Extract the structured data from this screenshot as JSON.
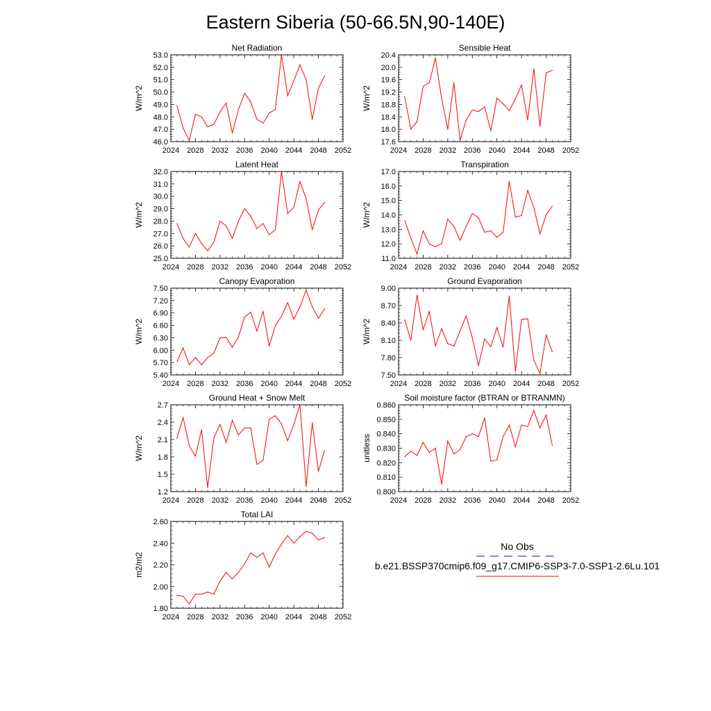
{
  "title": "Eastern Siberia (50-66.5N,90-140E)",
  "legend": {
    "obs_label": "No Obs",
    "model_label": "b.e21.BSSP370cmip6.f09_g17.CMIP6-SSP3-7.0-SSP1-2.6Lu.101",
    "obs_color": "#3b3bd0",
    "model_color": "#ff0000"
  },
  "chart_data": [
    {
      "type": "line",
      "title": "Net Radiation",
      "ylabel": "W/m^2",
      "xlim": [
        2024,
        2052
      ],
      "xticks": [
        2024,
        2028,
        2032,
        2036,
        2040,
        2044,
        2048,
        2052
      ],
      "ylim": [
        46.0,
        53.0
      ],
      "yticks": [
        "46.0",
        "47.0",
        "48.0",
        "49.0",
        "50.0",
        "51.0",
        "52.0",
        "53.0"
      ],
      "x": [
        2025,
        2026,
        2027,
        2028,
        2029,
        2030,
        2031,
        2032,
        2033,
        2034,
        2035,
        2036,
        2037,
        2038,
        2039,
        2040,
        2041,
        2042,
        2043,
        2044,
        2045,
        2046,
        2047,
        2048,
        2049
      ],
      "series": [
        {
          "values": [
            48.9,
            47.1,
            46.1,
            48.2,
            48.0,
            47.2,
            47.4,
            48.4,
            49.1,
            46.7,
            48.6,
            49.9,
            49.2,
            47.8,
            47.5,
            48.3,
            48.6,
            53.0,
            49.7,
            50.9,
            52.2,
            51.0,
            47.8,
            50.3,
            51.3
          ],
          "color": "#ff0000"
        }
      ]
    },
    {
      "type": "line",
      "title": "Sensible Heat",
      "ylabel": "W/m^2",
      "xlim": [
        2024,
        2052
      ],
      "xticks": [
        2024,
        2028,
        2032,
        2036,
        2040,
        2044,
        2048,
        2052
      ],
      "ylim": [
        17.6,
        20.4
      ],
      "yticks": [
        "17.6",
        "18.0",
        "18.4",
        "18.8",
        "19.2",
        "19.6",
        "20.0",
        "20.4"
      ],
      "x": [
        2025,
        2026,
        2027,
        2028,
        2029,
        2030,
        2031,
        2032,
        2033,
        2034,
        2035,
        2036,
        2037,
        2038,
        2039,
        2040,
        2041,
        2042,
        2043,
        2044,
        2045,
        2046,
        2047,
        2048,
        2049
      ],
      "series": [
        {
          "values": [
            19.05,
            18.0,
            18.25,
            19.38,
            19.5,
            20.3,
            19.0,
            18.0,
            19.5,
            17.65,
            18.3,
            18.62,
            18.57,
            18.72,
            17.95,
            19.0,
            18.82,
            18.6,
            18.98,
            19.43,
            18.3,
            19.95,
            18.1,
            19.82,
            19.9
          ],
          "color": "#ff0000"
        }
      ]
    },
    {
      "type": "line",
      "title": "Latent Heat",
      "ylabel": "W/m^2",
      "xlim": [
        2024,
        2052
      ],
      "xticks": [
        2024,
        2028,
        2032,
        2036,
        2040,
        2044,
        2048,
        2052
      ],
      "ylim": [
        25.0,
        32.0
      ],
      "yticks": [
        "25.0",
        "26.0",
        "27.0",
        "28.0",
        "29.0",
        "30.0",
        "31.0",
        "32.0"
      ],
      "x": [
        2025,
        2026,
        2027,
        2028,
        2029,
        2030,
        2031,
        2032,
        2033,
        2034,
        2035,
        2036,
        2037,
        2038,
        2039,
        2040,
        2041,
        2042,
        2043,
        2044,
        2045,
        2046,
        2047,
        2048,
        2049
      ],
      "series": [
        {
          "values": [
            27.8,
            26.6,
            25.9,
            27.0,
            26.2,
            25.6,
            26.3,
            28.0,
            27.6,
            26.6,
            28.0,
            29.0,
            28.4,
            27.4,
            27.8,
            26.9,
            27.3,
            32.0,
            28.6,
            29.1,
            31.2,
            29.8,
            27.3,
            28.9,
            29.5
          ],
          "color": "#ff0000"
        }
      ]
    },
    {
      "type": "line",
      "title": "Transpiration",
      "ylabel": "W/m^2",
      "xlim": [
        2024,
        2052
      ],
      "xticks": [
        2024,
        2028,
        2032,
        2036,
        2040,
        2044,
        2048,
        2052
      ],
      "ylim": [
        11.0,
        17.0
      ],
      "yticks": [
        "11.0",
        "12.0",
        "13.0",
        "14.0",
        "15.0",
        "16.0",
        "17.0"
      ],
      "x": [
        2025,
        2026,
        2027,
        2028,
        2029,
        2030,
        2031,
        2032,
        2033,
        2034,
        2035,
        2036,
        2037,
        2038,
        2039,
        2040,
        2041,
        2042,
        2043,
        2044,
        2045,
        2046,
        2047,
        2048,
        2049
      ],
      "series": [
        {
          "values": [
            13.6,
            12.4,
            11.3,
            12.9,
            12.0,
            11.8,
            12.0,
            13.7,
            13.2,
            12.25,
            13.2,
            14.1,
            13.8,
            12.8,
            12.9,
            12.45,
            12.8,
            16.3,
            13.85,
            13.95,
            15.7,
            14.5,
            12.7,
            14.0,
            14.6
          ],
          "color": "#ff0000"
        }
      ]
    },
    {
      "type": "line",
      "title": "Canopy Evaporation",
      "ylabel": "W/m^2",
      "xlim": [
        2024,
        2052
      ],
      "xticks": [
        2024,
        2028,
        2032,
        2036,
        2040,
        2044,
        2048,
        2052
      ],
      "ylim": [
        5.4,
        7.5
      ],
      "yticks": [
        "5.40",
        "5.70",
        "6.00",
        "6.30",
        "6.60",
        "6.90",
        "7.20",
        "7.50"
      ],
      "x": [
        2025,
        2026,
        2027,
        2028,
        2029,
        2030,
        2031,
        2032,
        2033,
        2034,
        2035,
        2036,
        2037,
        2038,
        2039,
        2040,
        2041,
        2042,
        2043,
        2044,
        2045,
        2046,
        2047,
        2048,
        2049
      ],
      "series": [
        {
          "values": [
            5.72,
            6.05,
            5.65,
            5.82,
            5.65,
            5.82,
            5.93,
            6.29,
            6.31,
            6.07,
            6.32,
            6.8,
            6.92,
            6.46,
            6.94,
            6.1,
            6.6,
            6.82,
            7.15,
            6.75,
            7.05,
            7.45,
            7.05,
            6.77,
            7.0
          ],
          "color": "#ff0000"
        }
      ]
    },
    {
      "type": "line",
      "title": "Ground Evaporation",
      "ylabel": "W/m^2",
      "xlim": [
        2024,
        2052
      ],
      "xticks": [
        2024,
        2028,
        2032,
        2036,
        2040,
        2044,
        2048,
        2052
      ],
      "ylim": [
        7.5,
        9.0
      ],
      "yticks": [
        "7.50",
        "7.80",
        "8.10",
        "8.40",
        "8.70",
        "9.00"
      ],
      "x": [
        2025,
        2026,
        2027,
        2028,
        2029,
        2030,
        2031,
        2032,
        2033,
        2034,
        2035,
        2036,
        2037,
        2038,
        2039,
        2040,
        2041,
        2042,
        2043,
        2044,
        2045,
        2046,
        2047,
        2048,
        2049
      ],
      "series": [
        {
          "values": [
            8.45,
            8.1,
            8.88,
            8.28,
            8.6,
            8.0,
            8.3,
            8.04,
            8.0,
            8.26,
            8.52,
            8.14,
            7.66,
            8.12,
            7.99,
            8.32,
            7.98,
            8.86,
            7.56,
            8.46,
            8.47,
            7.75,
            7.53,
            8.19,
            7.9
          ],
          "color": "#ff0000"
        }
      ]
    },
    {
      "type": "line",
      "title": "Ground Heat + Snow Melt",
      "ylabel": "W/m^2",
      "xlim": [
        2024,
        2052
      ],
      "xticks": [
        2024,
        2028,
        2032,
        2036,
        2040,
        2044,
        2048,
        2052
      ],
      "ylim": [
        1.2,
        2.7
      ],
      "yticks": [
        "1.2",
        "1.5",
        "1.8",
        "2.1",
        "2.4",
        "2.7"
      ],
      "x": [
        2025,
        2026,
        2027,
        2028,
        2029,
        2030,
        2031,
        2032,
        2033,
        2034,
        2035,
        2036,
        2037,
        2038,
        2039,
        2040,
        2041,
        2042,
        2043,
        2044,
        2045,
        2046,
        2047,
        2048,
        2049
      ],
      "series": [
        {
          "values": [
            2.12,
            2.48,
            1.99,
            1.81,
            2.27,
            1.27,
            2.13,
            2.36,
            2.05,
            2.43,
            2.18,
            2.3,
            2.3,
            1.67,
            1.74,
            2.45,
            2.51,
            2.37,
            2.08,
            2.36,
            2.7,
            1.29,
            2.39,
            1.55,
            1.91
          ],
          "color": "#ff0000"
        }
      ]
    },
    {
      "type": "line",
      "title": "Soil moisture factor (BTRAN or BTRANMN)",
      "ylabel": "unitless",
      "xlim": [
        2024,
        2052
      ],
      "xticks": [
        2024,
        2028,
        2032,
        2036,
        2040,
        2044,
        2048,
        2052
      ],
      "ylim": [
        0.8,
        0.86
      ],
      "yticks": [
        "0.800",
        "0.810",
        "0.820",
        "0.830",
        "0.840",
        "0.850",
        "0.860"
      ],
      "x": [
        2025,
        2026,
        2027,
        2028,
        2029,
        2030,
        2031,
        2032,
        2033,
        2034,
        2035,
        2036,
        2037,
        2038,
        2039,
        2040,
        2041,
        2042,
        2043,
        2044,
        2045,
        2046,
        2047,
        2048,
        2049
      ],
      "series": [
        {
          "values": [
            0.824,
            0.828,
            0.825,
            0.834,
            0.827,
            0.83,
            0.805,
            0.835,
            0.826,
            0.829,
            0.838,
            0.84,
            0.838,
            0.851,
            0.821,
            0.822,
            0.838,
            0.846,
            0.831,
            0.846,
            0.845,
            0.856,
            0.844,
            0.853,
            0.832
          ],
          "color": "#ff0000"
        }
      ]
    },
    {
      "type": "line",
      "title": "Total LAI",
      "ylabel": "m2/m2",
      "xlim": [
        2024,
        2052
      ],
      "xticks": [
        2024,
        2028,
        2032,
        2036,
        2040,
        2044,
        2048,
        2052
      ],
      "ylim": [
        1.8,
        2.6
      ],
      "yticks": [
        "1.80",
        "2.00",
        "2.20",
        "2.40",
        "2.60"
      ],
      "x": [
        2025,
        2026,
        2027,
        2028,
        2029,
        2030,
        2031,
        2032,
        2033,
        2034,
        2035,
        2036,
        2037,
        2038,
        2039,
        2040,
        2041,
        2042,
        2043,
        2044,
        2045,
        2046,
        2047,
        2048,
        2049
      ],
      "series": [
        {
          "values": [
            1.92,
            1.91,
            1.84,
            1.93,
            1.93,
            1.95,
            1.93,
            2.05,
            2.13,
            2.07,
            2.13,
            2.21,
            2.31,
            2.27,
            2.31,
            2.18,
            2.3,
            2.39,
            2.47,
            2.4,
            2.46,
            2.51,
            2.49,
            2.43,
            2.45
          ],
          "color": "#ff0000"
        }
      ]
    }
  ]
}
